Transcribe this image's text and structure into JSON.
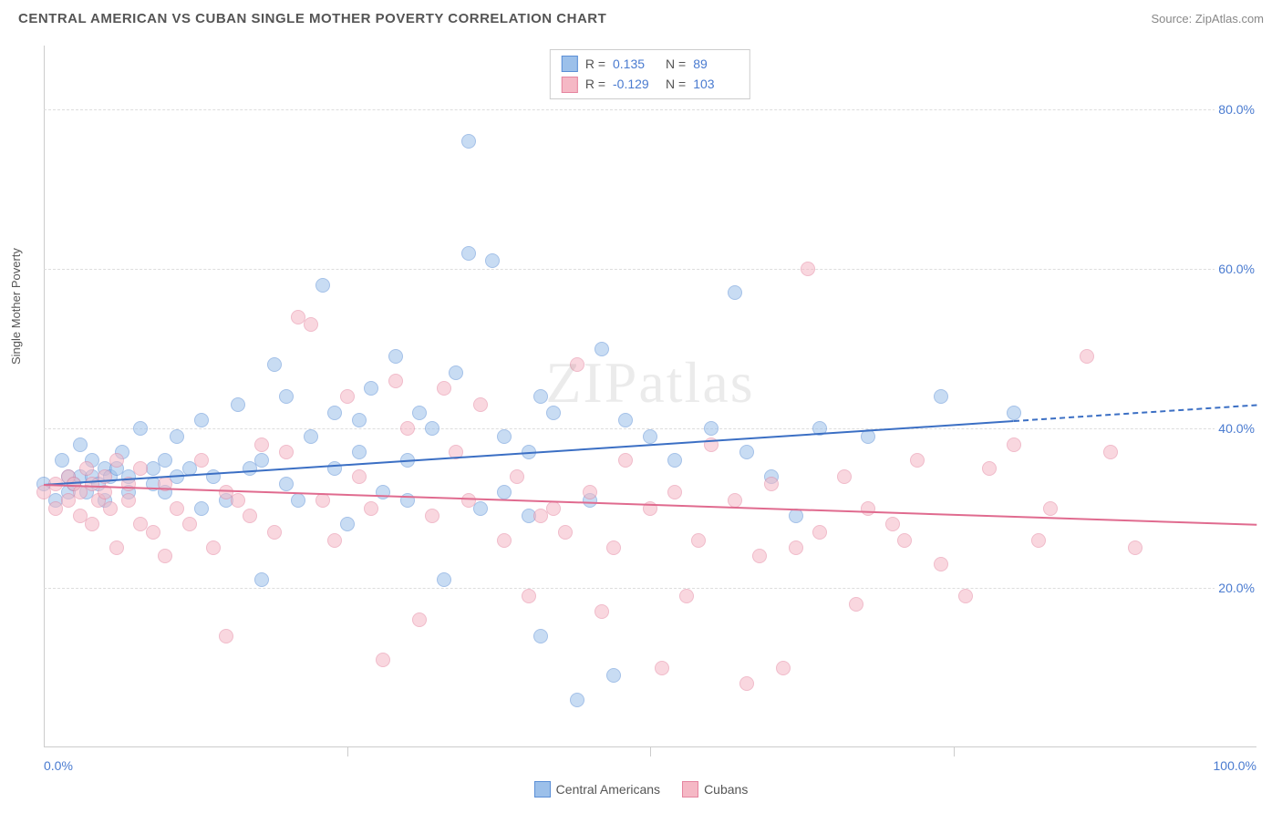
{
  "header": {
    "title": "CENTRAL AMERICAN VS CUBAN SINGLE MOTHER POVERTY CORRELATION CHART",
    "source": "Source: ZipAtlas.com"
  },
  "yaxis": {
    "label": "Single Mother Poverty"
  },
  "watermark": "ZIPatlas",
  "chart": {
    "type": "scatter",
    "xlim": [
      0,
      100
    ],
    "ylim": [
      0,
      88
    ],
    "yticks": [
      20,
      40,
      60,
      80
    ],
    "ytick_labels": [
      "20.0%",
      "40.0%",
      "60.0%",
      "80.0%"
    ],
    "xticks": [
      0,
      25,
      50,
      75,
      100
    ],
    "xtick_labels_shown": {
      "0": "0.0%",
      "100": "100.0%"
    },
    "grid_color": "#dddddd",
    "axis_color": "#cccccc",
    "background_color": "#ffffff",
    "point_radius": 8,
    "point_opacity": 0.55
  },
  "series": [
    {
      "name": "Central Americans",
      "fill": "#9cc0ea",
      "stroke": "#5b8fd6",
      "trend_color": "#3b6fc4",
      "R": "0.135",
      "N": "89",
      "trend": {
        "x1": 0,
        "y1": 33,
        "x2": 80,
        "y2": 41,
        "extend_x": 100,
        "extend_y": 43
      },
      "points": [
        [
          0,
          33
        ],
        [
          1,
          31
        ],
        [
          1.5,
          36
        ],
        [
          2,
          34
        ],
        [
          2,
          32
        ],
        [
          2.5,
          33
        ],
        [
          3,
          34
        ],
        [
          3,
          38
        ],
        [
          3.5,
          32
        ],
        [
          4,
          34
        ],
        [
          4,
          36
        ],
        [
          4.5,
          33
        ],
        [
          5,
          35
        ],
        [
          5,
          31
        ],
        [
          5.5,
          34
        ],
        [
          6,
          35
        ],
        [
          6.5,
          37
        ],
        [
          7,
          32
        ],
        [
          7,
          34
        ],
        [
          8,
          40
        ],
        [
          9,
          33
        ],
        [
          9,
          35
        ],
        [
          10,
          36
        ],
        [
          10,
          32
        ],
        [
          11,
          39
        ],
        [
          11,
          34
        ],
        [
          12,
          35
        ],
        [
          13,
          30
        ],
        [
          13,
          41
        ],
        [
          14,
          34
        ],
        [
          15,
          31
        ],
        [
          16,
          43
        ],
        [
          17,
          35
        ],
        [
          18,
          36
        ],
        [
          18,
          21
        ],
        [
          19,
          48
        ],
        [
          20,
          33
        ],
        [
          20,
          44
        ],
        [
          21,
          31
        ],
        [
          22,
          39
        ],
        [
          23,
          58
        ],
        [
          24,
          35
        ],
        [
          24,
          42
        ],
        [
          25,
          28
        ],
        [
          26,
          41
        ],
        [
          26,
          37
        ],
        [
          27,
          45
        ],
        [
          28,
          32
        ],
        [
          29,
          49
        ],
        [
          30,
          31
        ],
        [
          30,
          36
        ],
        [
          31,
          42
        ],
        [
          32,
          40
        ],
        [
          33,
          21
        ],
        [
          34,
          47
        ],
        [
          35,
          62
        ],
        [
          35,
          76
        ],
        [
          36,
          30
        ],
        [
          37,
          61
        ],
        [
          38,
          32
        ],
        [
          38,
          39
        ],
        [
          40,
          37
        ],
        [
          40,
          29
        ],
        [
          41,
          44
        ],
        [
          41,
          14
        ],
        [
          42,
          42
        ],
        [
          44,
          6
        ],
        [
          45,
          31
        ],
        [
          46,
          50
        ],
        [
          47,
          9
        ],
        [
          48,
          41
        ],
        [
          50,
          39
        ],
        [
          52,
          36
        ],
        [
          55,
          40
        ],
        [
          57,
          57
        ],
        [
          58,
          37
        ],
        [
          60,
          34
        ],
        [
          62,
          29
        ],
        [
          64,
          40
        ],
        [
          68,
          39
        ],
        [
          74,
          44
        ],
        [
          80,
          42
        ]
      ]
    },
    {
      "name": "Cubans",
      "fill": "#f5b8c5",
      "stroke": "#e585a0",
      "trend_color": "#e06b8f",
      "R": "-0.129",
      "N": "103",
      "trend": {
        "x1": 0,
        "y1": 33,
        "x2": 100,
        "y2": 28
      },
      "points": [
        [
          0,
          32
        ],
        [
          1,
          33
        ],
        [
          1,
          30
        ],
        [
          2,
          31
        ],
        [
          2,
          34
        ],
        [
          2.5,
          33
        ],
        [
          3,
          32
        ],
        [
          3,
          29
        ],
        [
          3.5,
          35
        ],
        [
          4,
          28
        ],
        [
          4,
          33
        ],
        [
          4.5,
          31
        ],
        [
          5,
          34
        ],
        [
          5,
          32
        ],
        [
          5.5,
          30
        ],
        [
          6,
          36
        ],
        [
          6,
          25
        ],
        [
          7,
          33
        ],
        [
          7,
          31
        ],
        [
          8,
          28
        ],
        [
          8,
          35
        ],
        [
          9,
          27
        ],
        [
          10,
          24
        ],
        [
          10,
          33
        ],
        [
          11,
          30
        ],
        [
          12,
          28
        ],
        [
          13,
          36
        ],
        [
          14,
          25
        ],
        [
          15,
          32
        ],
        [
          15,
          14
        ],
        [
          16,
          31
        ],
        [
          17,
          29
        ],
        [
          18,
          38
        ],
        [
          19,
          27
        ],
        [
          20,
          37
        ],
        [
          21,
          54
        ],
        [
          22,
          53
        ],
        [
          23,
          31
        ],
        [
          24,
          26
        ],
        [
          25,
          44
        ],
        [
          26,
          34
        ],
        [
          27,
          30
        ],
        [
          28,
          11
        ],
        [
          29,
          46
        ],
        [
          30,
          40
        ],
        [
          31,
          16
        ],
        [
          32,
          29
        ],
        [
          33,
          45
        ],
        [
          34,
          37
        ],
        [
          35,
          31
        ],
        [
          36,
          43
        ],
        [
          38,
          26
        ],
        [
          39,
          34
        ],
        [
          40,
          19
        ],
        [
          41,
          29
        ],
        [
          42,
          30
        ],
        [
          43,
          27
        ],
        [
          44,
          48
        ],
        [
          45,
          32
        ],
        [
          46,
          17
        ],
        [
          47,
          25
        ],
        [
          48,
          36
        ],
        [
          50,
          30
        ],
        [
          51,
          10
        ],
        [
          52,
          32
        ],
        [
          53,
          19
        ],
        [
          54,
          26
        ],
        [
          55,
          38
        ],
        [
          57,
          31
        ],
        [
          58,
          8
        ],
        [
          59,
          24
        ],
        [
          60,
          33
        ],
        [
          61,
          10
        ],
        [
          62,
          25
        ],
        [
          63,
          60
        ],
        [
          64,
          27
        ],
        [
          66,
          34
        ],
        [
          67,
          18
        ],
        [
          68,
          30
        ],
        [
          70,
          28
        ],
        [
          71,
          26
        ],
        [
          72,
          36
        ],
        [
          74,
          23
        ],
        [
          76,
          19
        ],
        [
          78,
          35
        ],
        [
          80,
          38
        ],
        [
          82,
          26
        ],
        [
          83,
          30
        ],
        [
          86,
          49
        ],
        [
          88,
          37
        ],
        [
          90,
          25
        ]
      ]
    }
  ],
  "legend_top": {
    "r_label": "R =",
    "n_label": "N ="
  },
  "legend_bottom": {
    "items": [
      "Central Americans",
      "Cubans"
    ]
  }
}
